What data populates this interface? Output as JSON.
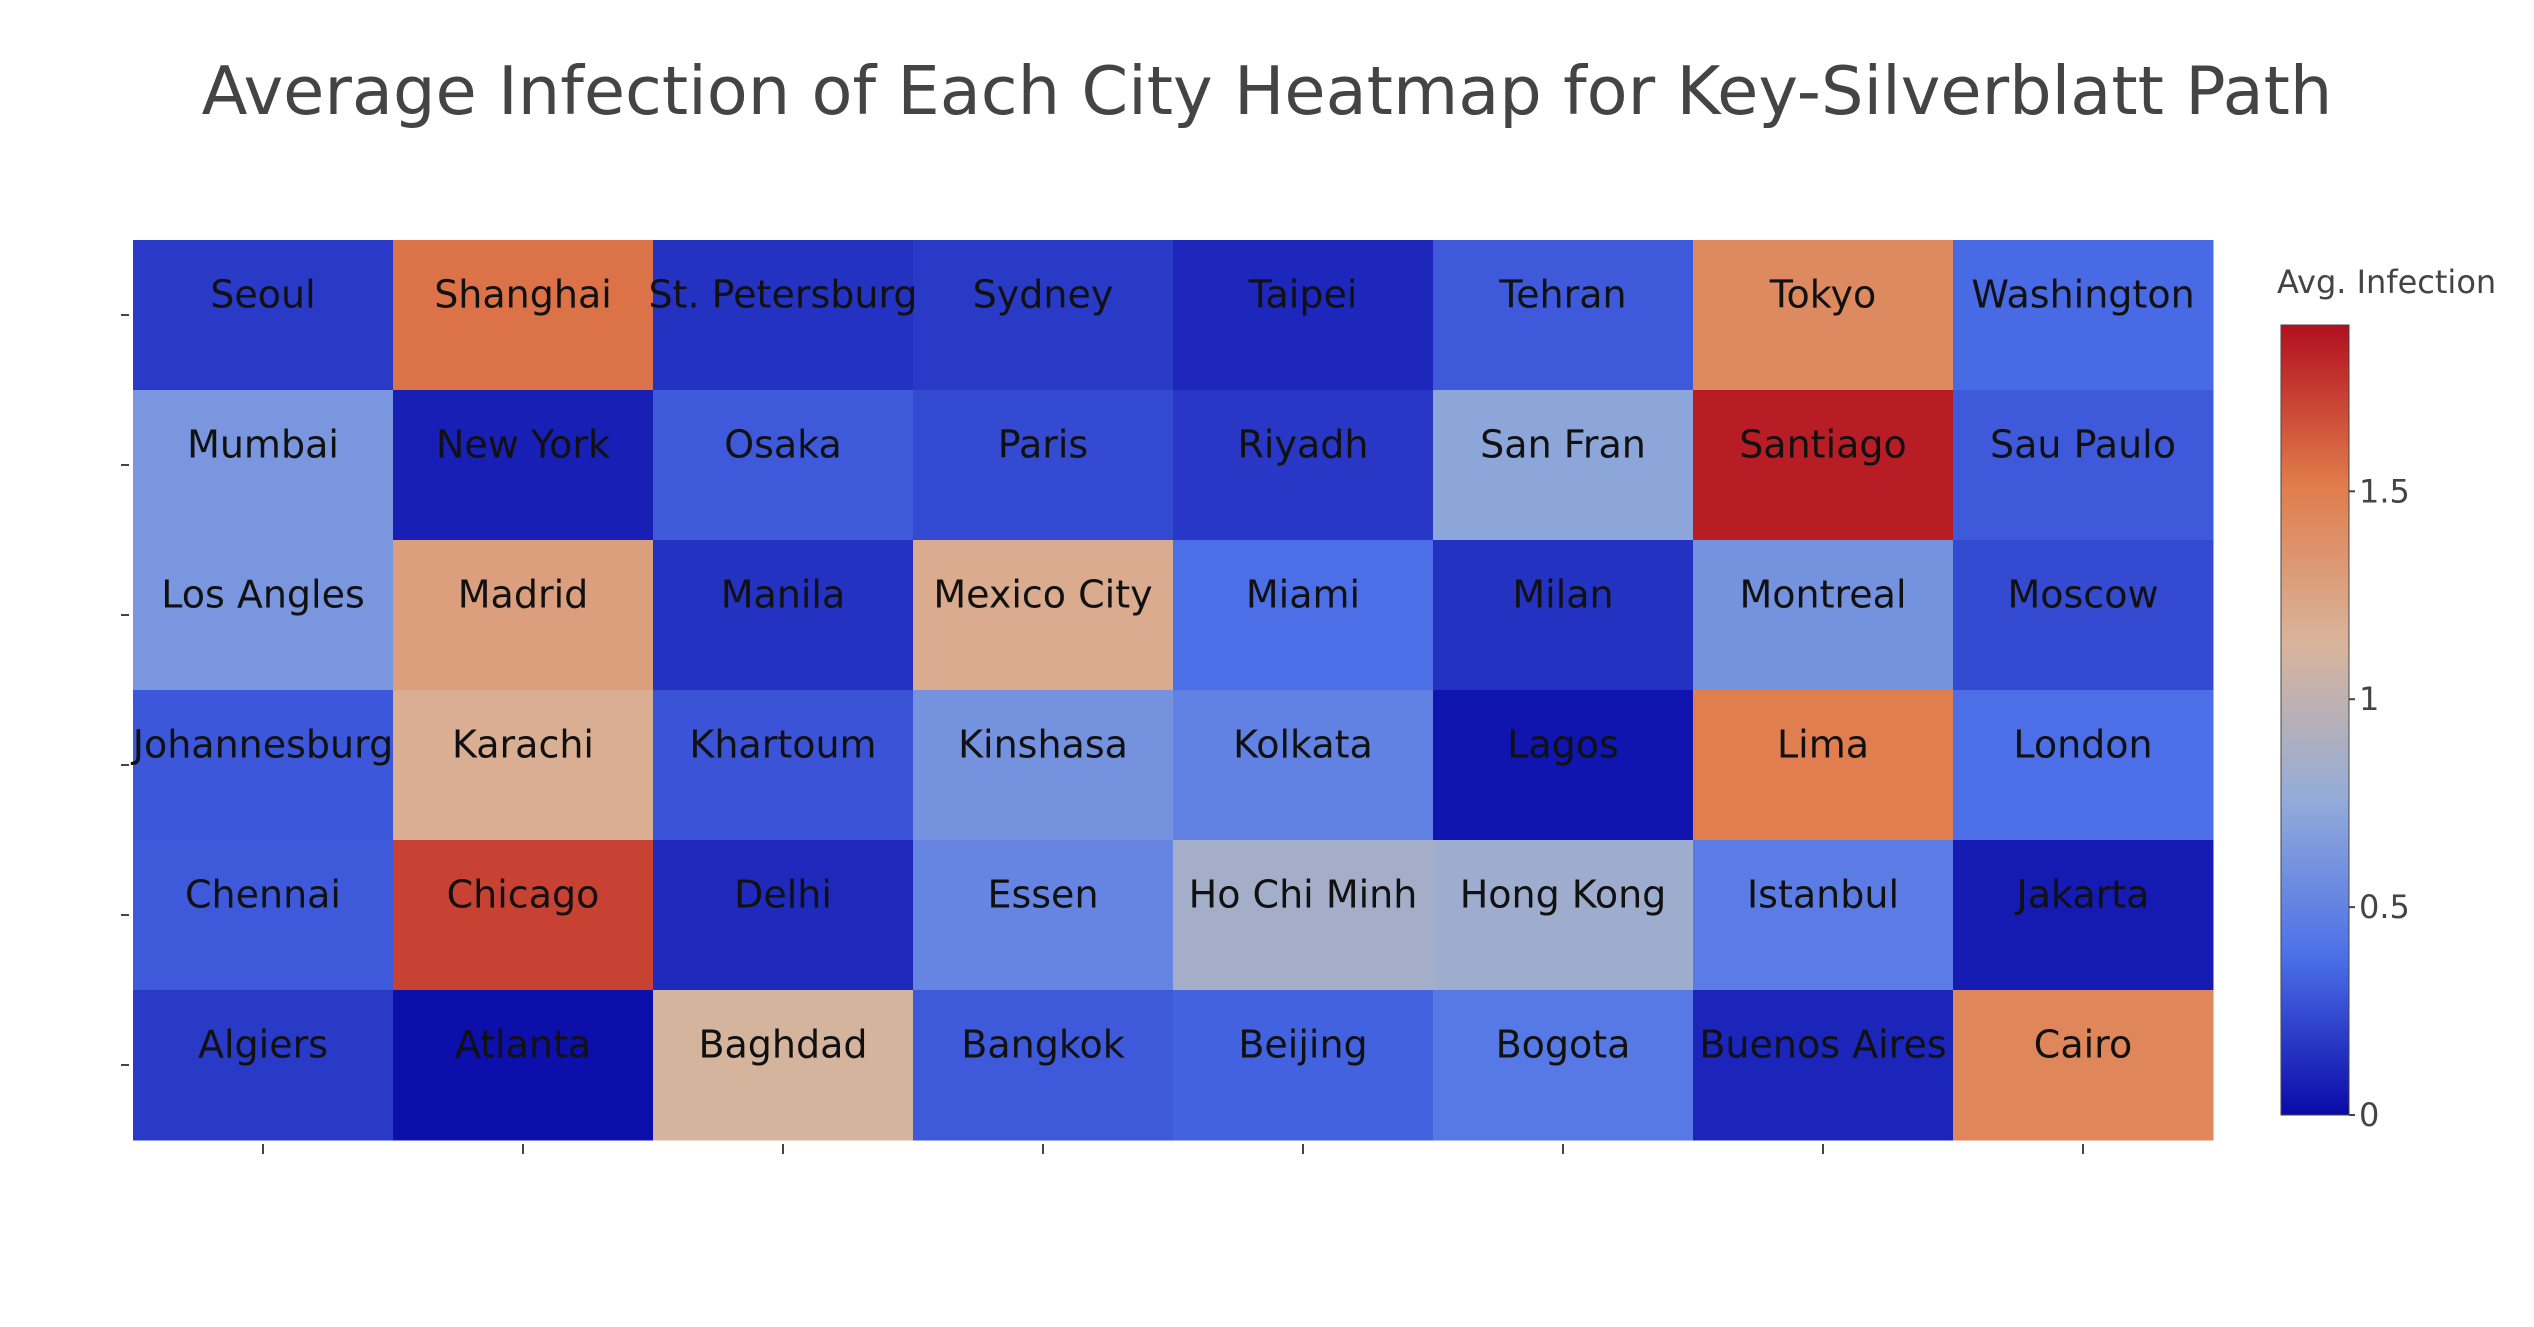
{
  "chart_data": {
    "type": "heatmap",
    "title": "Average Infection of Each City Heatmap for Key-Silverblatt Path",
    "xlabel": "",
    "ylabel": "",
    "rows": [
      {
        "cells": [
          {
            "city": "Seoul",
            "value": 0.18
          },
          {
            "city": "Shanghai",
            "value": 1.55
          },
          {
            "city": "St. Petersburg",
            "value": 0.15
          },
          {
            "city": "Sydney",
            "value": 0.18
          },
          {
            "city": "Taipei",
            "value": 0.11
          },
          {
            "city": "Tehran",
            "value": 0.3
          },
          {
            "city": "Tokyo",
            "value": 1.42
          },
          {
            "city": "Washington",
            "value": 0.36
          }
        ]
      },
      {
        "cells": [
          {
            "city": "Mumbai",
            "value": 0.62
          },
          {
            "city": "New York",
            "value": 0.08
          },
          {
            "city": "Osaka",
            "value": 0.3
          },
          {
            "city": "Paris",
            "value": 0.24
          },
          {
            "city": "Riyadh",
            "value": 0.17
          },
          {
            "city": "San Fran",
            "value": 0.72
          },
          {
            "city": "Santiago",
            "value": 1.85
          },
          {
            "city": "Sau Paulo",
            "value": 0.3
          }
        ]
      },
      {
        "cells": [
          {
            "city": "Los Angles",
            "value": 0.62
          },
          {
            "city": "Madrid",
            "value": 1.28
          },
          {
            "city": "Manila",
            "value": 0.15
          },
          {
            "city": "Mexico City",
            "value": 1.2
          },
          {
            "city": "Miami",
            "value": 0.38
          },
          {
            "city": "Milan",
            "value": 0.15
          },
          {
            "city": "Montreal",
            "value": 0.6
          },
          {
            "city": "Moscow",
            "value": 0.24
          }
        ]
      },
      {
        "cells": [
          {
            "city": "Johannesburg",
            "value": 0.29
          },
          {
            "city": "Karachi",
            "value": 1.18
          },
          {
            "city": "Khartoum",
            "value": 0.28
          },
          {
            "city": "Kinshasa",
            "value": 0.6
          },
          {
            "city": "Kolkata",
            "value": 0.5
          },
          {
            "city": "Lagos",
            "value": 0.04
          },
          {
            "city": "Lima",
            "value": 1.5
          },
          {
            "city": "London",
            "value": 0.38
          }
        ]
      },
      {
        "cells": [
          {
            "city": "Chennai",
            "value": 0.3
          },
          {
            "city": "Chicago",
            "value": 1.72
          },
          {
            "city": "Delhi",
            "value": 0.12
          },
          {
            "city": "Essen",
            "value": 0.52
          },
          {
            "city": "Ho Chi Minh",
            "value": 0.86
          },
          {
            "city": "Hong Kong",
            "value": 0.82
          },
          {
            "city": "Istanbul",
            "value": 0.46
          },
          {
            "city": "Jakarta",
            "value": 0.06
          }
        ]
      },
      {
        "cells": [
          {
            "city": "Algiers",
            "value": 0.18
          },
          {
            "city": "Atlanta",
            "value": 0.02
          },
          {
            "city": "Baghdad",
            "value": 1.12
          },
          {
            "city": "Bangkok",
            "value": 0.3
          },
          {
            "city": "Beijing",
            "value": 0.33
          },
          {
            "city": "Bogota",
            "value": 0.44
          },
          {
            "city": "Buenos Aires",
            "value": 0.1
          },
          {
            "city": "Cairo",
            "value": 1.45
          }
        ]
      }
    ],
    "colorscale": [
      "#0a0aa8",
      "#4c6fe8",
      "#93acd8",
      "#d9b49a",
      "#e07b4b",
      "#b20f1f"
    ],
    "zmin": 0,
    "zmax": 1.9,
    "colorbar": {
      "title": "Avg. Infection",
      "ticks": [
        0,
        0.5,
        1,
        1.5
      ],
      "tick_labels": [
        "0",
        "0.5",
        "1",
        "1.5"
      ]
    },
    "grid": false,
    "legend": "right"
  }
}
